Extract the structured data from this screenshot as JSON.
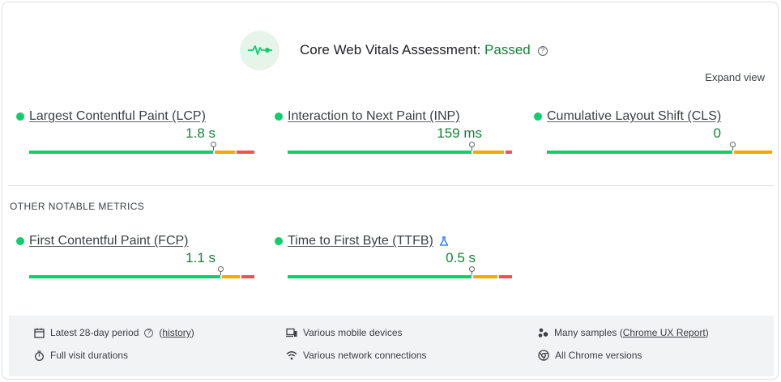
{
  "assessment": {
    "title": "Core Web Vitals Assessment: ",
    "status": "Passed",
    "help_glyph": "?",
    "status_color": "#188038"
  },
  "expand_view": "Expand view",
  "core_metrics": [
    {
      "name": "Largest Contentful Paint (LCP)",
      "value": "1.8 s",
      "distribution": {
        "good": 0.83,
        "needs_improvement": 0.09,
        "poor": 0.08
      }
    },
    {
      "name": "Interaction to Next Paint (INP)",
      "value": "159 ms",
      "distribution": {
        "good": 0.83,
        "needs_improvement": 0.14,
        "poor": 0.03
      }
    },
    {
      "name": "Cumulative Layout Shift (CLS)",
      "value": "0",
      "distribution": {
        "good": 0.83,
        "needs_improvement": 0.17,
        "poor": 0.0
      }
    }
  ],
  "other_section_title": "OTHER NOTABLE METRICS",
  "other_metrics": [
    {
      "name": "First Contentful Paint (FCP)",
      "value": "1.1 s",
      "distribution": {
        "good": 0.86,
        "needs_improvement": 0.08,
        "poor": 0.06
      }
    },
    {
      "name": "Time to First Byte (TTFB)",
      "value": "0.5 s",
      "distribution": {
        "good": 0.83,
        "needs_improvement": 0.11,
        "poor": 0.06
      }
    }
  ],
  "colors": {
    "good": "#0cce6b",
    "needs_improvement": "#ffa400",
    "poor": "#ff4e42"
  },
  "footer": {
    "period_label": "Latest 28-day period",
    "history_paren_open": "(",
    "history_link": "history",
    "history_paren_close": ")",
    "visit_durations": "Full visit durations",
    "devices": "Various mobile devices",
    "network": "Various network connections",
    "samples_prefix": "Many samples (",
    "samples_link": "Chrome UX Report",
    "samples_suffix": ")",
    "chrome_versions": "All Chrome versions"
  }
}
